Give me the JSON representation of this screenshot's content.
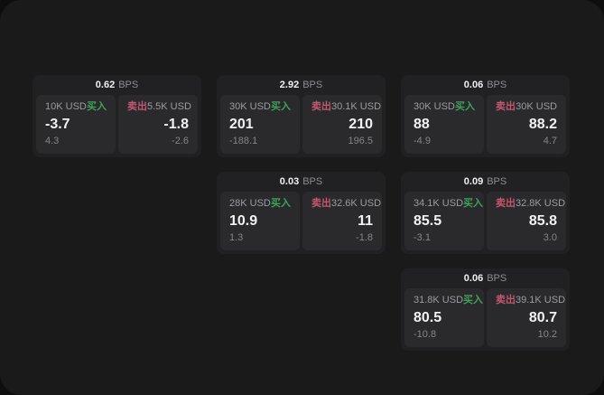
{
  "colors": {
    "buy_accent": "#3fa05a",
    "sell_accent": "#c25670",
    "window_bg": "#1a1a1b",
    "card_bg": "#212123",
    "panel_bg": "#2a2a2d"
  },
  "cards": [
    {
      "bps_value": "0.62",
      "bps_unit": "BPS",
      "buy": {
        "amount": "10K USD",
        "side_label": "买入",
        "value": "-3.7",
        "delta": "4.3"
      },
      "sell": {
        "amount": "5.5K USD",
        "side_label": "卖出",
        "value": "-1.8",
        "delta": "-2.6"
      }
    },
    {
      "bps_value": "2.92",
      "bps_unit": "BPS",
      "buy": {
        "amount": "30K USD",
        "side_label": "买入",
        "value": "201",
        "delta": "-188.1"
      },
      "sell": {
        "amount": "30.1K USD",
        "side_label": "卖出",
        "value": "210",
        "delta": "196.5"
      }
    },
    {
      "bps_value": "0.06",
      "bps_unit": "BPS",
      "buy": {
        "amount": "30K USD",
        "side_label": "买入",
        "value": "88",
        "delta": "-4.9"
      },
      "sell": {
        "amount": "30K USD",
        "side_label": "卖出",
        "value": "88.2",
        "delta": "4.7"
      }
    },
    {
      "bps_value": "0.03",
      "bps_unit": "BPS",
      "buy": {
        "amount": "28K USD",
        "side_label": "买入",
        "value": "10.9",
        "delta": "1.3"
      },
      "sell": {
        "amount": "32.6K USD",
        "side_label": "卖出",
        "value": "11",
        "delta": "-1.8"
      }
    },
    {
      "bps_value": "0.09",
      "bps_unit": "BPS",
      "buy": {
        "amount": "34.1K USD",
        "side_label": "买入",
        "value": "85.5",
        "delta": "-3.1"
      },
      "sell": {
        "amount": "32.8K USD",
        "side_label": "卖出",
        "value": "85.8",
        "delta": "3.0"
      }
    },
    {
      "bps_value": "0.06",
      "bps_unit": "BPS",
      "buy": {
        "amount": "31.8K USD",
        "side_label": "买入",
        "value": "80.5",
        "delta": "-10.8"
      },
      "sell": {
        "amount": "39.1K USD",
        "side_label": "卖出",
        "value": "80.7",
        "delta": "10.2"
      }
    }
  ]
}
